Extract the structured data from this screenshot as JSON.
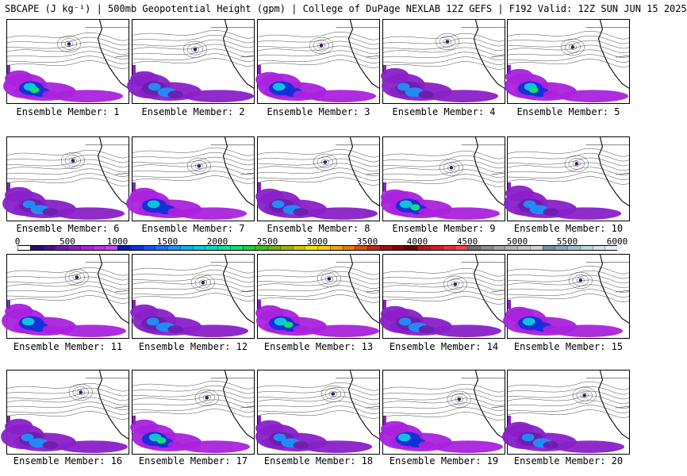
{
  "header": {
    "title": "SBCAPE (J kg⁻¹) | 500mb Geopotential Height (gpm) | College of DuPage NEXLAB 12Z GEFS | F192 Valid: 12Z SUN JUN 15 2025"
  },
  "chart_data": {
    "type": "heatmap",
    "title": "SBCAPE (J kg⁻¹) | 500mb Geopotential Height (gpm) | College of DuPage NEXLAB 12Z GEFS | F192 Valid: 12Z SUN JUN 15 2025",
    "colorbar": {
      "min": 0,
      "max": 6000,
      "tick_labels": [
        "0",
        "500",
        "1000",
        "1500",
        "2000",
        "2500",
        "3000",
        "3500",
        "4000",
        "4500",
        "5000",
        "5500",
        "6000"
      ],
      "colors": [
        "#f5f5f5",
        "#2a0d6e",
        "#4a0f8e",
        "#6a1fae",
        "#8a20c8",
        "#aa22dd",
        "#c032e8",
        "#d040ee",
        "#0a1cb0",
        "#1030d8",
        "#1a50f0",
        "#1f70f8",
        "#1f90f8",
        "#10b0f0",
        "#10c8e0",
        "#10d8c0",
        "#10e0a0",
        "#10e070",
        "#20d040",
        "#40c020",
        "#70b018",
        "#a0b010",
        "#d0c010",
        "#f0e010",
        "#f8c810",
        "#f0a010",
        "#e87810",
        "#d85010",
        "#c02818",
        "#a01010",
        "#800808",
        "#600408",
        "#b81820",
        "#d02030",
        "#e83040",
        "#f84050",
        "#707070",
        "#8a8a8a",
        "#a0a0a0",
        "#b4b4b4",
        "#c4c4c4",
        "#d0d0d0",
        "#7890a0",
        "#8aa8b8",
        "#a0c0cc",
        "#b8d4dc",
        "#d0e4ea",
        "#e4f0f4"
      ]
    },
    "panels": [
      {
        "label": "Ensemble Member: 1"
      },
      {
        "label": "Ensemble Member: 2"
      },
      {
        "label": "Ensemble Member: 3"
      },
      {
        "label": "Ensemble Member: 4"
      },
      {
        "label": "Ensemble Member: 5"
      },
      {
        "label": "Ensemble Member: 6"
      },
      {
        "label": "Ensemble Member: 7"
      },
      {
        "label": "Ensemble Member: 8"
      },
      {
        "label": "Ensemble Member: 9"
      },
      {
        "label": "Ensemble Member: 10"
      },
      {
        "label": "Ensemble Member: 11"
      },
      {
        "label": "Ensemble Member: 12"
      },
      {
        "label": "Ensemble Member: 13"
      },
      {
        "label": "Ensemble Member: 14"
      },
      {
        "label": "Ensemble Member: 15"
      },
      {
        "label": "Ensemble Member: 16"
      },
      {
        "label": "Ensemble Member: 17"
      },
      {
        "label": "Ensemble Member: 18"
      },
      {
        "label": "Ensemble Member: 19"
      },
      {
        "label": "Ensemble Member: 20"
      }
    ]
  }
}
